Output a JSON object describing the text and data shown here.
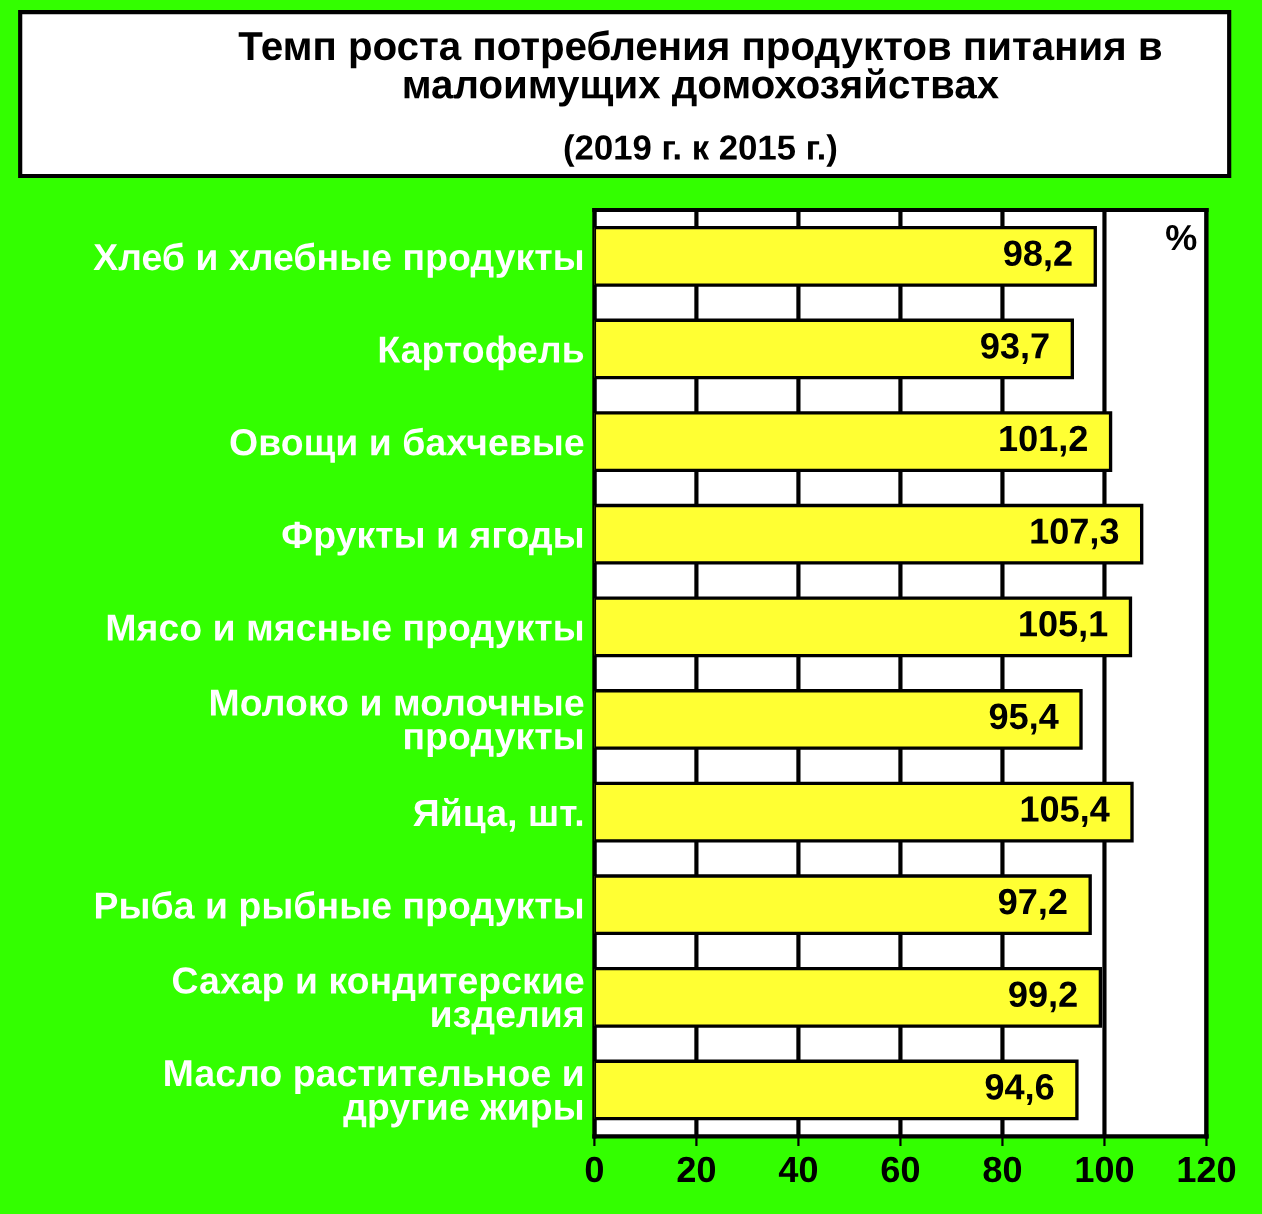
{
  "chart_data": {
    "type": "bar",
    "orientation": "horizontal",
    "title": "Темп роста потребления продуктов питания в малоимущих домохозяйствах",
    "subtitle": "(2019 г. к 2015 г.)",
    "xlabel": "%",
    "categories": [
      "Хлеб и хлебные продукты",
      "Картофель",
      "Овощи и бахчевые",
      "Фрукты и ягоды",
      "Мясо и мясные продукты",
      "Молоко и молочные\nпродукты",
      "Яйца, шт.",
      "Рыба и рыбные продукты",
      "Сахар и кондитерские\nизделия",
      "Масло растительное и\nдругие жиры"
    ],
    "values": [
      98.2,
      93.7,
      101.2,
      107.3,
      105.1,
      95.4,
      105.4,
      97.2,
      99.2,
      94.6
    ],
    "value_labels": [
      "98,2",
      "93,7",
      "101,2",
      "107,3",
      "105,1",
      "95,4",
      "105,4",
      "97,2",
      "99,2",
      "94,6"
    ],
    "color": "#ffff33",
    "xlim": [
      0,
      120
    ],
    "xticks": [
      0,
      20,
      40,
      60,
      80,
      100,
      120
    ],
    "grid": "x",
    "legend": false
  }
}
